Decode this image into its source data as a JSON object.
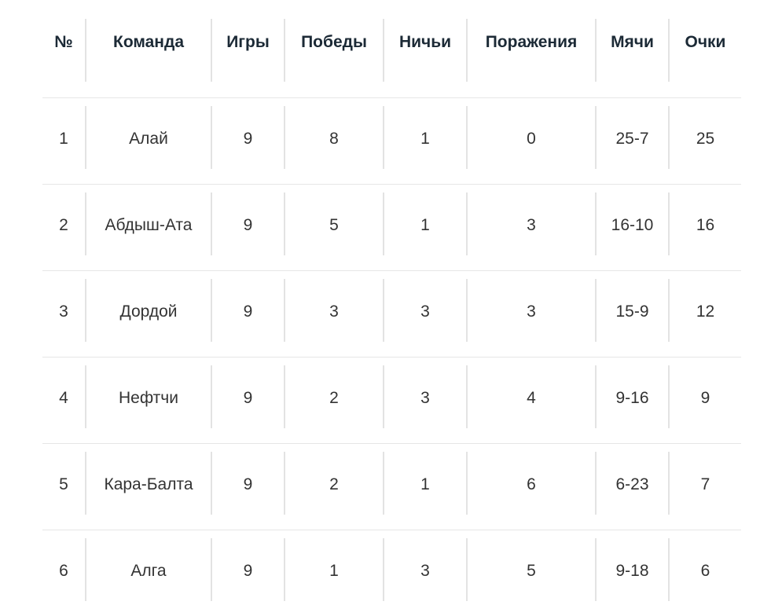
{
  "table": {
    "headers": [
      "№",
      "Команда",
      "Игры",
      "Победы",
      "Ничьи",
      "Поражения",
      "Мячи",
      "Очки"
    ],
    "rows": [
      [
        "1",
        "Алай",
        "9",
        "8",
        "1",
        "0",
        "25-7",
        "25"
      ],
      [
        "2",
        "Абдыш-Ата",
        "9",
        "5",
        "1",
        "3",
        "16-10",
        "16"
      ],
      [
        "3",
        "Дордой",
        "9",
        "3",
        "3",
        "3",
        "15-9",
        "12"
      ],
      [
        "4",
        "Нефтчи",
        "9",
        "2",
        "3",
        "4",
        "9-16",
        "9"
      ],
      [
        "5",
        "Кара-Балта",
        "9",
        "2",
        "1",
        "6",
        "6-23",
        "7"
      ],
      [
        "6",
        "Алга",
        "9",
        "1",
        "3",
        "5",
        "9-18",
        "6"
      ]
    ]
  }
}
